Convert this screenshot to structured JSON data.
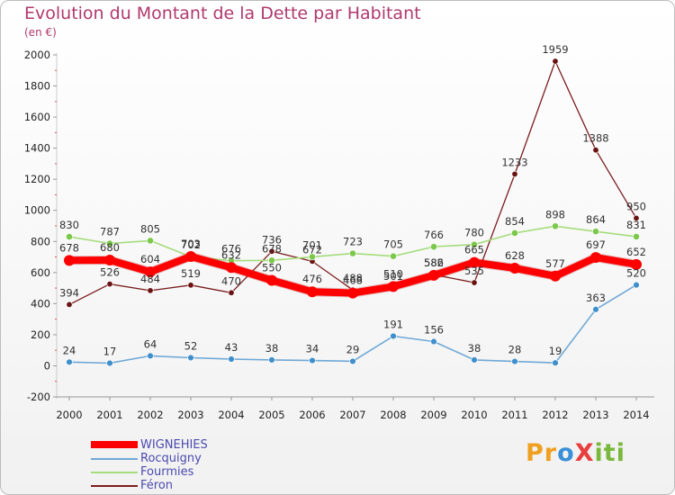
{
  "header": {
    "title": "Evolution du Montant de la Dette par Habitant",
    "subtitle": "(en €)"
  },
  "logo": {
    "text": "ProXiti",
    "colors": [
      "#f0a020",
      "#3a8fd8",
      "#e83e3e",
      "#79b83a"
    ]
  },
  "chart_data": {
    "type": "line",
    "x": [
      2000,
      2001,
      2002,
      2003,
      2004,
      2005,
      2006,
      2007,
      2008,
      2009,
      2010,
      2011,
      2012,
      2013,
      2014
    ],
    "ylim": [
      -200,
      2000
    ],
    "yticks": [
      -200,
      0,
      200,
      400,
      600,
      800,
      1000,
      1200,
      1400,
      1600,
      1800,
      2000
    ],
    "grid": false,
    "legend": "bottom-left",
    "series": [
      {
        "name": "Féron",
        "color": "#7b1c1c",
        "point_color": "#6b1212",
        "values": [
          394,
          526,
          484,
          519,
          470,
          736,
          672,
          488,
          501,
          586,
          535,
          1233,
          1959,
          1388,
          950
        ]
      },
      {
        "name": "Fourmies",
        "color": "#a6dc7c",
        "point_color": "#7bc84a",
        "values": [
          830,
          787,
          805,
          702,
          676,
          678,
          701,
          723,
          705,
          766,
          780,
          854,
          898,
          864,
          831
        ]
      },
      {
        "name": "Rocquigny",
        "color": "#6fa8d6",
        "point_color": "#3f8fcc",
        "values": [
          24,
          17,
          64,
          52,
          43,
          38,
          34,
          29,
          191,
          156,
          38,
          28,
          19,
          363,
          520
        ]
      },
      {
        "name": "WIGNEHIES",
        "color": "#ff0000",
        "point_color": "#ff0000",
        "values": [
          678,
          680,
          604,
          703,
          632,
          550,
          476,
          468,
          510,
          582,
          665,
          628,
          577,
          697,
          652
        ]
      }
    ]
  }
}
